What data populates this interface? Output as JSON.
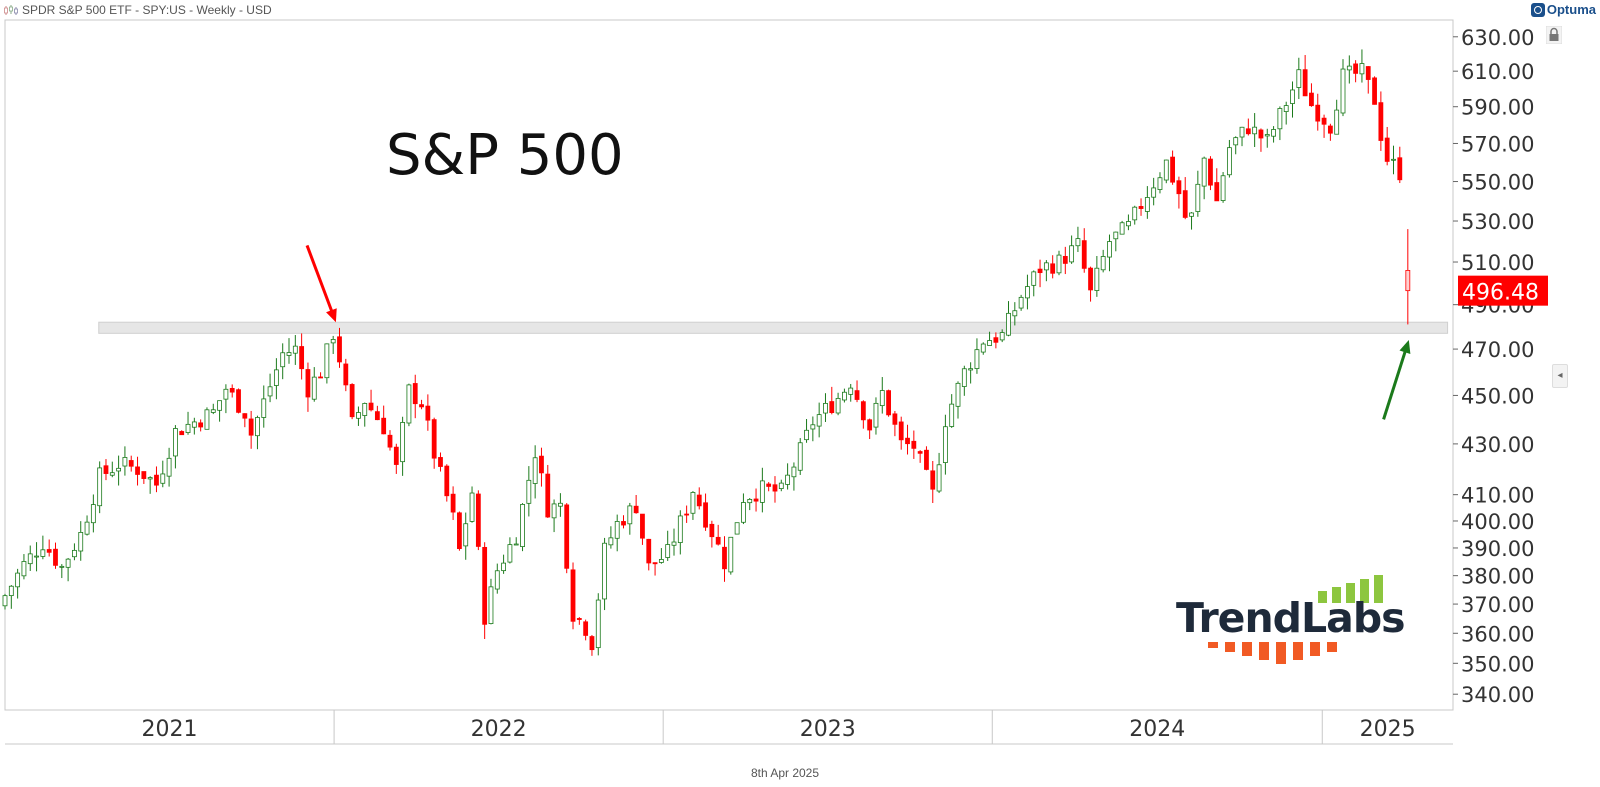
{
  "header": {
    "series_title": "SPDR S&P 500 ETF - SPY:US - Weekly - USD",
    "vendor_name": "Optuma"
  },
  "footer": {
    "date": "8th Apr 2025"
  },
  "logo": {
    "text": "TrendLabs",
    "bar_color_top": "#8dc63f",
    "bar_color_bottom": "#f15a24"
  },
  "colors": {
    "up": "#1b7a1b",
    "down": "#ff0000",
    "axis": "#333333",
    "grid": "#d0d0d0",
    "price_box": "#ff0000",
    "arrow_red": "#ff0000",
    "arrow_green": "#1b7a1b",
    "zone": "#e6e6e6"
  },
  "chart_data": {
    "type": "candlestick",
    "title": "S&P 500",
    "scale": "log",
    "ylim": [
      335,
      640
    ],
    "xlim": [
      "2021-01-01",
      "2025-05-26"
    ],
    "y_ticks": [
      340,
      350,
      360,
      370,
      380,
      390,
      400,
      410,
      430,
      450,
      470,
      490,
      510,
      530,
      550,
      570,
      590,
      610,
      630
    ],
    "y_tick_labels": [
      "340.00",
      "350.00",
      "360.00",
      "370.00",
      "380.00",
      "390.00",
      "400.00",
      "410.00",
      "430.00",
      "450.00",
      "470.00",
      "490.00",
      "510.00",
      "530.00",
      "550.00",
      "570.00",
      "590.00",
      "610.00",
      "630.00"
    ],
    "x_labels": [
      {
        "label": "2021",
        "start": "2021-01-01",
        "end": "2022-01-01"
      },
      {
        "label": "2022",
        "start": "2022-01-01",
        "end": "2023-01-01"
      },
      {
        "label": "2023",
        "start": "2023-01-01",
        "end": "2024-01-01"
      },
      {
        "label": "2024",
        "start": "2024-01-01",
        "end": "2025-01-01"
      },
      {
        "label": "2025",
        "start": "2025-01-01",
        "end": "2025-05-26"
      }
    ],
    "last_price": 496.48,
    "last_price_label": "496.48",
    "support_zone": {
      "low": 477,
      "high": 482,
      "start": "2021-04-15",
      "end": "2025-05-20"
    },
    "annotations": [
      {
        "type": "arrow",
        "color": "red",
        "tip_date": "2022-01-03",
        "tip_price": 482,
        "tail_date": "2021-12-02",
        "tail_price": 518
      },
      {
        "type": "arrow",
        "color": "green",
        "tip_date": "2025-04-07",
        "tip_price": 474,
        "tail_date": "2025-03-10",
        "tail_price": 440
      }
    ],
    "weekly_closes": [
      [
        "2021-01-01",
        373
      ],
      [
        "2021-01-22",
        384
      ],
      [
        "2021-02-12",
        392
      ],
      [
        "2021-03-05",
        383
      ],
      [
        "2021-03-26",
        395
      ],
      [
        "2021-04-16",
        417
      ],
      [
        "2021-05-07",
        422
      ],
      [
        "2021-05-28",
        420
      ],
      [
        "2021-06-18",
        414
      ],
      [
        "2021-07-09",
        435
      ],
      [
        "2021-07-30",
        439
      ],
      [
        "2021-08-20",
        443
      ],
      [
        "2021-09-03",
        453
      ],
      [
        "2021-09-24",
        443
      ],
      [
        "2021-10-01",
        434
      ],
      [
        "2021-10-22",
        454
      ],
      [
        "2021-11-05",
        468
      ],
      [
        "2021-11-19",
        470
      ],
      [
        "2021-12-03",
        453
      ],
      [
        "2021-12-17",
        460
      ],
      [
        "2021-12-31",
        477
      ],
      [
        "2022-01-07",
        466
      ],
      [
        "2022-01-21",
        438
      ],
      [
        "2022-02-04",
        448
      ],
      [
        "2022-02-25",
        437
      ],
      [
        "2022-03-11",
        420
      ],
      [
        "2022-03-25",
        452
      ],
      [
        "2022-04-08",
        447
      ],
      [
        "2022-04-22",
        426
      ],
      [
        "2022-05-13",
        401
      ],
      [
        "2022-05-20",
        389
      ],
      [
        "2022-06-03",
        411
      ],
      [
        "2022-06-17",
        366
      ],
      [
        "2022-07-01",
        382
      ],
      [
        "2022-07-22",
        395
      ],
      [
        "2022-08-12",
        427
      ],
      [
        "2022-08-26",
        405
      ],
      [
        "2022-09-09",
        406
      ],
      [
        "2022-09-23",
        367
      ],
      [
        "2022-10-07",
        362
      ],
      [
        "2022-10-14",
        357
      ],
      [
        "2022-10-28",
        389
      ],
      [
        "2022-11-11",
        399
      ],
      [
        "2022-12-02",
        406
      ],
      [
        "2022-12-16",
        383
      ],
      [
        "2023-01-06",
        388
      ],
      [
        "2023-01-27",
        405
      ],
      [
        "2023-02-03",
        412
      ],
      [
        "2023-02-24",
        396
      ],
      [
        "2023-03-10",
        385
      ],
      [
        "2023-03-31",
        409
      ],
      [
        "2023-04-21",
        412
      ],
      [
        "2023-05-12",
        411
      ],
      [
        "2023-06-02",
        427
      ],
      [
        "2023-06-16",
        439
      ],
      [
        "2023-07-14",
        449
      ],
      [
        "2023-07-28",
        456
      ],
      [
        "2023-08-18",
        437
      ],
      [
        "2023-09-01",
        451
      ],
      [
        "2023-09-22",
        430
      ],
      [
        "2023-10-06",
        429
      ],
      [
        "2023-10-27",
        410
      ],
      [
        "2023-11-10",
        440
      ],
      [
        "2023-12-01",
        460
      ],
      [
        "2023-12-22",
        474
      ],
      [
        "2024-01-12",
        476
      ],
      [
        "2024-02-02",
        494
      ],
      [
        "2024-02-23",
        507
      ],
      [
        "2024-03-15",
        510
      ],
      [
        "2024-04-05",
        518
      ],
      [
        "2024-04-19",
        495
      ],
      [
        "2024-05-10",
        520
      ],
      [
        "2024-05-31",
        527
      ],
      [
        "2024-06-21",
        544
      ],
      [
        "2024-07-12",
        560
      ],
      [
        "2024-07-26",
        544
      ],
      [
        "2024-08-02",
        532
      ],
      [
        "2024-08-09",
        532
      ],
      [
        "2024-08-23",
        562
      ],
      [
        "2024-09-06",
        540
      ],
      [
        "2024-09-20",
        568
      ],
      [
        "2024-10-11",
        579
      ],
      [
        "2024-11-01",
        571
      ],
      [
        "2024-11-15",
        585
      ],
      [
        "2024-12-06",
        607
      ],
      [
        "2024-12-20",
        591
      ],
      [
        "2025-01-10",
        580
      ],
      [
        "2025-01-24",
        607
      ],
      [
        "2025-02-14",
        609
      ],
      [
        "2025-02-28",
        594
      ],
      [
        "2025-03-07",
        575
      ],
      [
        "2025-03-14",
        562
      ],
      [
        "2025-03-28",
        555
      ],
      [
        "2025-04-04",
        506
      ],
      [
        "2025-04-07",
        496.48
      ]
    ]
  }
}
